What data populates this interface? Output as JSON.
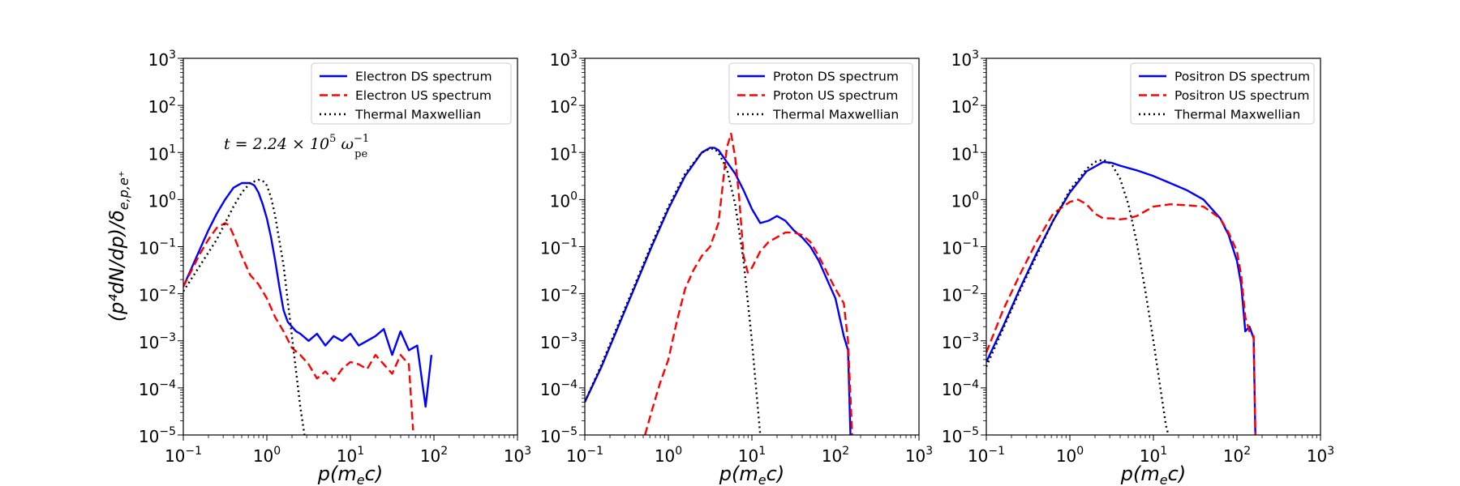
{
  "figure": {
    "ylabel_text": "(p⁴dN/dp)/δ",
    "ylabel_sub": "e,p,e⁺",
    "annotation": {
      "prefix": "t = 2.24 × 10",
      "exp": "5",
      "omega": " ω",
      "omega_sup": "−1",
      "omega_sub": "pe"
    }
  },
  "axes_common": {
    "x_label_text": "p(m",
    "x_label_sub": "e",
    "x_label_end": "c)",
    "x_ticks": [
      {
        "base": "10",
        "exp": "−1",
        "value": -1
      },
      {
        "base": "10",
        "exp": "0",
        "value": 0
      },
      {
        "base": "10",
        "exp": "1",
        "value": 1
      },
      {
        "base": "10",
        "exp": "2",
        "value": 2
      },
      {
        "base": "10",
        "exp": "3",
        "value": 3
      }
    ],
    "y_ticks": [
      {
        "base": "10",
        "exp": "−5",
        "value": -5
      },
      {
        "base": "10",
        "exp": "−4",
        "value": -4
      },
      {
        "base": "10",
        "exp": "−3",
        "value": -3
      },
      {
        "base": "10",
        "exp": "−2",
        "value": -2
      },
      {
        "base": "10",
        "exp": "−1",
        "value": -1
      },
      {
        "base": "10",
        "exp": "0",
        "value": 0
      },
      {
        "base": "10",
        "exp": "1",
        "value": 1
      },
      {
        "base": "10",
        "exp": "2",
        "value": 2
      },
      {
        "base": "10",
        "exp": "3",
        "value": 3
      }
    ]
  },
  "colors": {
    "ds": "#0000ff",
    "us": "#ff0000",
    "thermal": "#000000"
  },
  "chart_data": [
    {
      "type": "line",
      "name": "electron",
      "xscale": "log",
      "yscale": "log",
      "xlim_log10": [
        -1,
        3
      ],
      "ylim_log10": [
        -5,
        3
      ],
      "legend_position": "top-right",
      "legend": [
        "Electron DS spectrum",
        "Electron US spectrum",
        "Thermal Maxwellian"
      ],
      "series": [
        {
          "name": "Electron DS spectrum",
          "style": "solid",
          "color": "#0000ff",
          "x": [
            -1,
            -0.9,
            -0.8,
            -0.7,
            -0.6,
            -0.5,
            -0.4,
            -0.3,
            -0.2,
            -0.15,
            -0.1,
            -0.05,
            0,
            0.05,
            0.1,
            0.15,
            0.2,
            0.25,
            0.3,
            0.35,
            0.4,
            0.5,
            0.6,
            0.7,
            0.8,
            0.9,
            1.0,
            1.1,
            1.2,
            1.3,
            1.4,
            1.5,
            1.6,
            1.7,
            1.8,
            1.9,
            1.97
          ],
          "y": [
            -1.85,
            -1.45,
            -1.05,
            -0.65,
            -0.3,
            0.0,
            0.25,
            0.35,
            0.35,
            0.3,
            0.15,
            -0.1,
            -0.4,
            -0.8,
            -1.3,
            -1.85,
            -2.35,
            -2.6,
            -2.7,
            -2.8,
            -2.85,
            -3.0,
            -2.85,
            -3.1,
            -2.9,
            -3.0,
            -2.85,
            -3.1,
            -3.0,
            -2.9,
            -2.75,
            -3.3,
            -2.8,
            -3.2,
            -3.1,
            -4.4,
            -3.3
          ]
        },
        {
          "name": "Electron US spectrum",
          "style": "dashed",
          "color": "#ff0000",
          "x": [
            -1,
            -0.9,
            -0.8,
            -0.7,
            -0.6,
            -0.5,
            -0.45,
            -0.4,
            -0.3,
            -0.2,
            -0.1,
            0.0,
            0.1,
            0.2,
            0.3,
            0.4,
            0.5,
            0.6,
            0.7,
            0.8,
            0.9,
            1.0,
            1.1,
            1.2,
            1.3,
            1.4,
            1.5,
            1.6,
            1.7,
            1.75
          ],
          "y": [
            -1.85,
            -1.5,
            -1.15,
            -0.85,
            -0.6,
            -0.5,
            -0.55,
            -0.75,
            -1.2,
            -1.6,
            -1.8,
            -2.1,
            -2.5,
            -2.8,
            -3.15,
            -3.3,
            -3.5,
            -3.8,
            -3.65,
            -3.85,
            -3.6,
            -3.45,
            -3.5,
            -3.6,
            -3.3,
            -3.5,
            -3.7,
            -3.3,
            -3.5,
            -4.9
          ]
        },
        {
          "name": "Thermal Maxwellian",
          "style": "dotted",
          "color": "#000000",
          "x": [
            -1,
            -0.8,
            -0.6,
            -0.4,
            -0.3,
            -0.2,
            -0.1,
            -0.05,
            0,
            0.05,
            0.1,
            0.2,
            0.3,
            0.4,
            0.45
          ],
          "y": [
            -1.95,
            -1.4,
            -0.85,
            -0.15,
            0.15,
            0.35,
            0.42,
            0.4,
            0.3,
            0.05,
            -0.35,
            -1.4,
            -2.9,
            -4.4,
            -5.0
          ]
        }
      ]
    },
    {
      "type": "line",
      "name": "proton",
      "xscale": "log",
      "yscale": "log",
      "xlim_log10": [
        -1,
        3
      ],
      "ylim_log10": [
        -5,
        3
      ],
      "legend_position": "top-right",
      "legend": [
        "Proton DS spectrum",
        "Proton US spectrum",
        "Thermal Maxwellian"
      ],
      "series": [
        {
          "name": "Proton DS spectrum",
          "style": "solid",
          "color": "#0000ff",
          "x": [
            -1,
            -0.8,
            -0.6,
            -0.4,
            -0.2,
            0,
            0.2,
            0.4,
            0.5,
            0.55,
            0.6,
            0.7,
            0.8,
            0.9,
            1.0,
            1.1,
            1.2,
            1.3,
            1.4,
            1.5,
            1.6,
            1.7,
            1.8,
            1.9,
            2.0,
            2.1,
            2.15,
            2.18
          ],
          "y": [
            -4.3,
            -3.55,
            -2.7,
            -1.85,
            -1.0,
            -0.2,
            0.5,
            1.0,
            1.1,
            1.1,
            1.05,
            0.8,
            0.55,
            0.2,
            -0.2,
            -0.5,
            -0.45,
            -0.35,
            -0.45,
            -0.65,
            -0.8,
            -1.0,
            -1.3,
            -1.7,
            -2.1,
            -2.9,
            -3.2,
            -5.0
          ]
        },
        {
          "name": "Proton US spectrum",
          "style": "dashed",
          "color": "#ff0000",
          "x": [
            -0.28,
            -0.2,
            -0.1,
            0,
            0.1,
            0.2,
            0.3,
            0.4,
            0.5,
            0.6,
            0.65,
            0.7,
            0.75,
            0.8,
            0.85,
            0.9,
            0.95,
            1.0,
            1.1,
            1.2,
            1.3,
            1.4,
            1.5,
            1.6,
            1.7,
            1.8,
            1.9,
            2.0,
            2.1,
            2.15,
            2.2
          ],
          "y": [
            -5.0,
            -4.5,
            -3.9,
            -3.4,
            -2.6,
            -1.9,
            -1.5,
            -1.2,
            -1.0,
            -0.5,
            0.3,
            1.1,
            1.4,
            0.9,
            0.0,
            -1.2,
            -1.55,
            -1.45,
            -1.1,
            -0.9,
            -0.8,
            -0.7,
            -0.7,
            -0.75,
            -0.9,
            -1.2,
            -1.55,
            -1.9,
            -2.2,
            -3.0,
            -5.0
          ]
        },
        {
          "name": "Thermal Maxwellian",
          "style": "dotted",
          "color": "#000000",
          "x": [
            -1,
            -0.8,
            -0.6,
            -0.4,
            -0.2,
            0,
            0.2,
            0.4,
            0.5,
            0.55,
            0.6,
            0.7,
            0.8,
            0.9,
            1.0,
            1.05,
            1.1
          ],
          "y": [
            -4.3,
            -3.5,
            -2.65,
            -1.8,
            -0.95,
            -0.15,
            0.55,
            1.0,
            1.08,
            1.08,
            1.0,
            0.65,
            -0.1,
            -1.3,
            -3.0,
            -4.0,
            -5.0
          ]
        }
      ]
    },
    {
      "type": "line",
      "name": "positron",
      "xscale": "log",
      "yscale": "log",
      "xlim_log10": [
        -1,
        3
      ],
      "ylim_log10": [
        -5,
        3
      ],
      "legend_position": "top-right",
      "legend": [
        "Positron DS spectrum",
        "Positron US spectrum",
        "Thermal Maxwellian"
      ],
      "series": [
        {
          "name": "Positron DS spectrum",
          "style": "solid",
          "color": "#0000ff",
          "x": [
            -1,
            -0.8,
            -0.6,
            -0.4,
            -0.2,
            0,
            0.2,
            0.4,
            0.5,
            0.6,
            0.8,
            1.0,
            1.2,
            1.4,
            1.6,
            1.8,
            1.9,
            2.0,
            2.05,
            2.1,
            2.15,
            2.2,
            2.22
          ],
          "y": [
            -3.45,
            -2.7,
            -1.9,
            -1.15,
            -0.45,
            0.15,
            0.6,
            0.8,
            0.78,
            0.72,
            0.62,
            0.5,
            0.35,
            0.2,
            0.0,
            -0.4,
            -0.75,
            -1.3,
            -1.8,
            -2.8,
            -2.7,
            -2.95,
            -5.0
          ]
        },
        {
          "name": "Positron US spectrum",
          "style": "dashed",
          "color": "#ff0000",
          "x": [
            -1,
            -0.8,
            -0.6,
            -0.4,
            -0.2,
            0,
            0.1,
            0.2,
            0.3,
            0.4,
            0.5,
            0.6,
            0.7,
            0.8,
            1.0,
            1.2,
            1.4,
            1.6,
            1.8,
            1.9,
            2.0,
            2.05,
            2.1,
            2.15,
            2.2,
            2.22
          ],
          "y": [
            -3.25,
            -2.35,
            -1.6,
            -0.9,
            -0.3,
            -0.05,
            0.0,
            -0.1,
            -0.3,
            -0.4,
            -0.4,
            -0.42,
            -0.4,
            -0.35,
            -0.15,
            -0.1,
            -0.12,
            -0.15,
            -0.4,
            -0.7,
            -1.1,
            -1.6,
            -2.5,
            -2.8,
            -2.9,
            -5.0
          ]
        },
        {
          "name": "Thermal Maxwellian",
          "style": "dotted",
          "color": "#000000",
          "x": [
            -1,
            -0.8,
            -0.6,
            -0.4,
            -0.2,
            0,
            0.2,
            0.3,
            0.4,
            0.5,
            0.6,
            0.7,
            0.8,
            0.9,
            1.0,
            1.1,
            1.15,
            1.18
          ],
          "y": [
            -3.55,
            -2.75,
            -1.95,
            -1.2,
            -0.45,
            0.2,
            0.65,
            0.8,
            0.85,
            0.75,
            0.45,
            -0.1,
            -0.9,
            -1.9,
            -3.0,
            -4.2,
            -4.8,
            -5.0
          ]
        }
      ]
    }
  ]
}
